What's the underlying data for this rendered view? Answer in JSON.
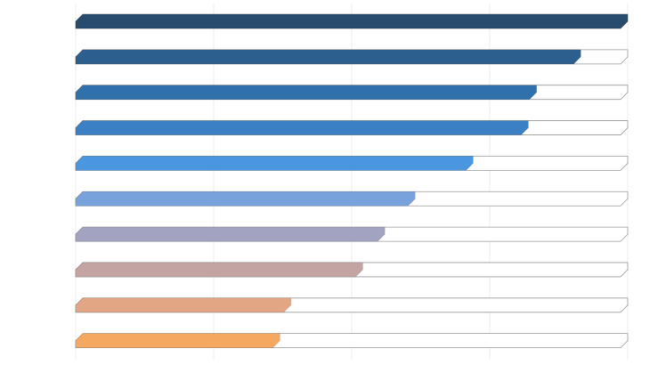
{
  "chart_data": {
    "type": "bar",
    "orientation": "horizontal",
    "title": "",
    "xlabel": "",
    "ylabel": "",
    "xlim": [
      0,
      100
    ],
    "grid": true,
    "legend": "none",
    "track": true,
    "categories": [
      "",
      "",
      "",
      "",
      "",
      "",
      "",
      "",
      "",
      ""
    ],
    "values": [
      100,
      91.5,
      83.5,
      82,
      72,
      61.5,
      56,
      52,
      39,
      37
    ],
    "colors": [
      "#274b6c",
      "#2c5f8d",
      "#3171ab",
      "#3b80c4",
      "#4a96df",
      "#77a2db",
      "#a1a3c1",
      "#c4a4a3",
      "#e3a685",
      "#f5a860"
    ]
  }
}
